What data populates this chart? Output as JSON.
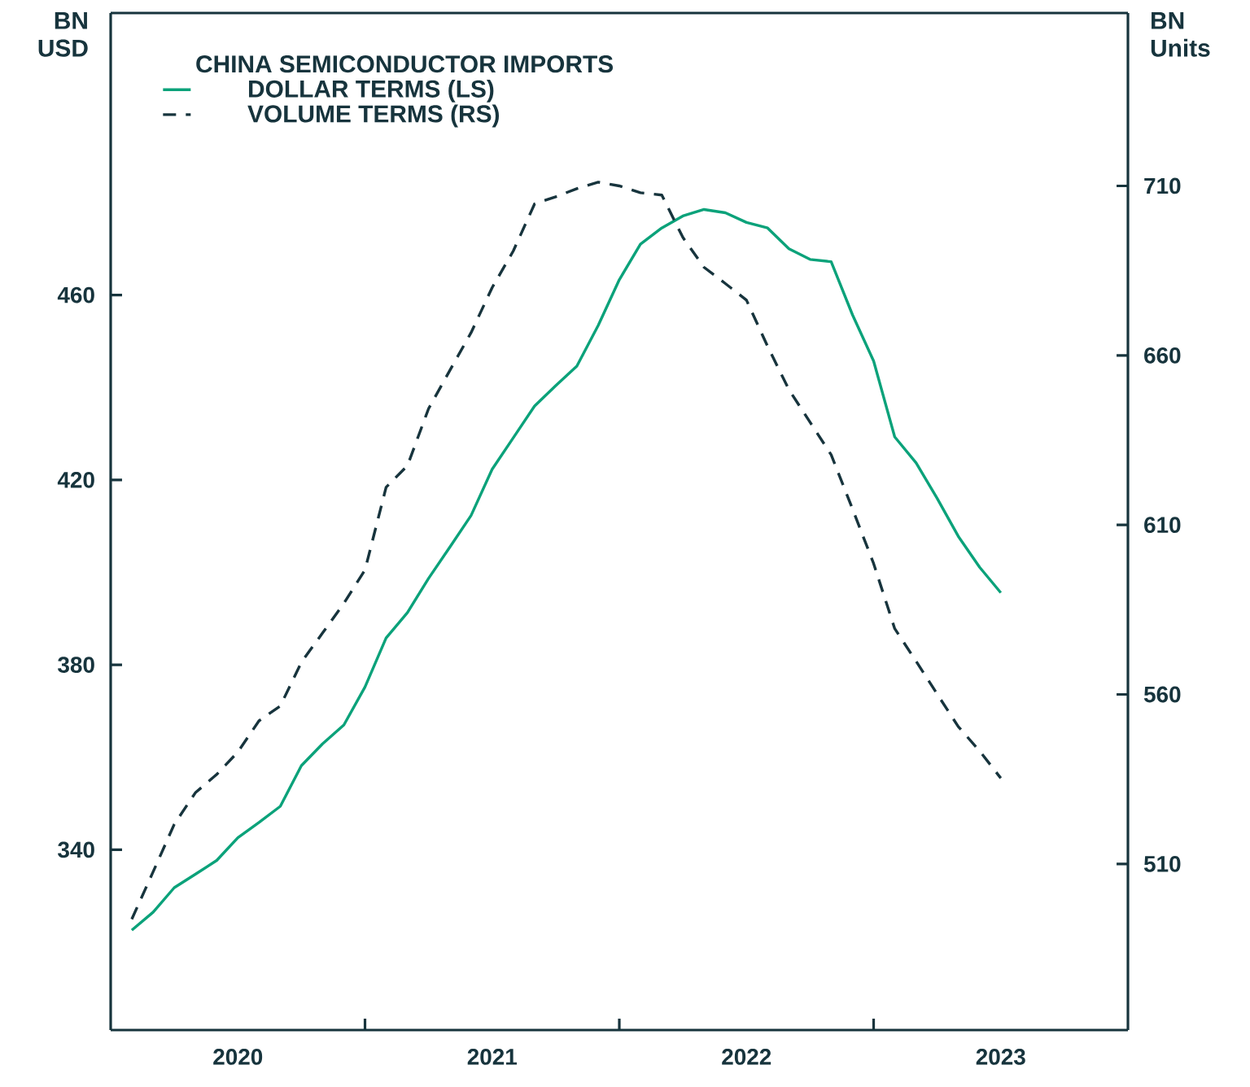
{
  "chart_data": {
    "type": "line",
    "legend_title": "CHINA SEMICONDUCTOR IMPORTS",
    "legend": "top left",
    "ylabel": "BN USD",
    "y2label": "BN Units",
    "x": [
      2020.083,
      2020.167,
      2020.25,
      2020.333,
      2020.417,
      2020.5,
      2020.583,
      2020.667,
      2020.75,
      2020.833,
      2020.917,
      2021.0,
      2021.083,
      2021.167,
      2021.25,
      2021.333,
      2021.417,
      2021.5,
      2021.583,
      2021.667,
      2021.75,
      2021.833,
      2021.917,
      2022.0,
      2022.083,
      2022.167,
      2022.25,
      2022.333,
      2022.417,
      2022.5,
      2022.583,
      2022.667,
      2022.75,
      2022.833,
      2022.917,
      2023.0,
      2023.083,
      2023.167,
      2023.25,
      2023.333,
      2023.417,
      2023.5
    ],
    "xlim": [
      2020,
      2024
    ],
    "xticks": [
      {
        "value": 2020.5,
        "label": "2020"
      },
      {
        "value": 2021,
        "label": null
      },
      {
        "value": 2021.5,
        "label": "2021"
      },
      {
        "value": 2022,
        "label": null
      },
      {
        "value": 2022.5,
        "label": "2022"
      },
      {
        "value": 2023,
        "label": null
      },
      {
        "value": 2023.5,
        "label": "2023"
      }
    ],
    "ylim": [
      301,
      521
    ],
    "yticks": [
      340,
      380,
      420,
      460
    ],
    "y2lim": [
      461,
      761
    ],
    "y2ticks": [
      510,
      560,
      610,
      660,
      710
    ],
    "series": [
      {
        "name": "DOLLAR TERMS (LS)",
        "color": "#0ba27a",
        "line_style": "solid",
        "values": [
          322.6,
          326.5,
          331.8,
          334.7,
          337.7,
          342.6,
          345.9,
          349.4,
          358.2,
          362.9,
          367.0,
          375.2,
          385.8,
          391.3,
          398.7,
          405.4,
          412.3,
          422.3,
          429.1,
          436.0,
          440.4,
          444.6,
          453.4,
          463.3,
          471.0,
          474.5,
          477.1,
          478.5,
          477.8,
          475.7,
          474.5,
          470.0,
          467.7,
          467.2,
          455.7,
          445.7,
          429.3,
          423.7,
          416.0,
          407.8,
          401.1,
          395.6
        ]
      },
      {
        "name": "VOLUME TERMS (RS)",
        "color": "#17343d",
        "line_style": "dashed",
        "axis": "y2",
        "values": [
          493.7,
          507.7,
          521.7,
          531.0,
          536.4,
          543.0,
          552.2,
          556.6,
          569.5,
          578.1,
          586.9,
          596.7,
          621.1,
          627.5,
          644.3,
          655.5,
          666.7,
          680.0,
          690.8,
          704.7,
          706.8,
          709.2,
          711.1,
          710.0,
          708.0,
          707.3,
          694.8,
          686.0,
          681.2,
          676.3,
          662.7,
          649.9,
          640.3,
          630.7,
          614.7,
          598.6,
          579.4,
          569.8,
          560.1,
          550.5,
          543.3,
          535.3
        ]
      }
    ]
  }
}
